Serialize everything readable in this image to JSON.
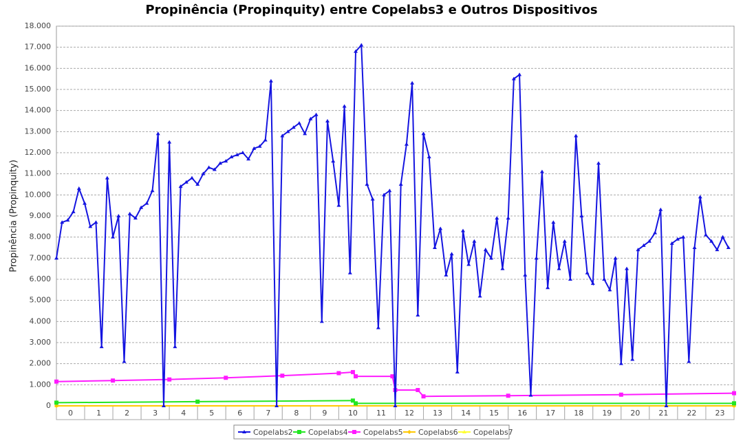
{
  "chart_data": {
    "type": "line",
    "title": "Propinência (Propinquity) entre Copelabs3 e Outros Dispositivos",
    "y_label": "Propinência (Propinquity)",
    "categories": [
      0,
      1,
      2,
      3,
      4,
      5,
      6,
      7,
      8,
      9,
      10,
      11,
      12,
      13,
      14,
      15,
      16,
      17,
      18,
      19,
      20,
      21,
      22,
      23
    ],
    "xlim": [
      0,
      24
    ],
    "ylim": [
      0,
      18000
    ],
    "yticks": [
      {
        "value": 0,
        "label": "0"
      },
      {
        "value": 1000,
        "label": "1.000"
      },
      {
        "value": 2000,
        "label": "2.000"
      },
      {
        "value": 3000,
        "label": "3.000"
      },
      {
        "value": 4000,
        "label": "4.000"
      },
      {
        "value": 5000,
        "label": "5.000"
      },
      {
        "value": 6000,
        "label": "6.000"
      },
      {
        "value": 7000,
        "label": "7.000"
      },
      {
        "value": 8000,
        "label": "8.000"
      },
      {
        "value": 9000,
        "label": "9.000"
      },
      {
        "value": 10000,
        "label": "10.000"
      },
      {
        "value": 11000,
        "label": "11.000"
      },
      {
        "value": 12000,
        "label": "12.000"
      },
      {
        "value": 13000,
        "label": "13.000"
      },
      {
        "value": 14000,
        "label": "14.000"
      },
      {
        "value": 15000,
        "label": "15.000"
      },
      {
        "value": 16000,
        "label": "16.000"
      },
      {
        "value": 17000,
        "label": "17.000"
      },
      {
        "value": 18000,
        "label": "18.000"
      }
    ],
    "grid": true,
    "legend": "bottom",
    "series": [
      {
        "name": "Copelabs2",
        "color": "#1414e0",
        "marker": "triangle",
        "x": [
          0,
          0.2,
          0.4,
          0.6,
          0.8,
          1,
          1.2,
          1.4,
          1.6,
          1.8,
          2,
          2.2,
          2.4,
          2.6,
          2.8,
          3,
          3.2,
          3.4,
          3.6,
          3.8,
          4,
          4.2,
          4.4,
          4.6,
          4.8,
          5,
          5.2,
          5.4,
          5.6,
          5.8,
          6,
          6.2,
          6.4,
          6.6,
          6.8,
          7,
          7.2,
          7.4,
          7.6,
          7.8,
          8,
          8.2,
          8.4,
          8.6,
          8.8,
          9,
          9.2,
          9.4,
          9.6,
          9.8,
          10,
          10.2,
          10.4,
          10.6,
          10.8,
          11,
          11.2,
          11.4,
          11.6,
          11.8,
          12,
          12.2,
          12.4,
          12.6,
          12.8,
          13,
          13.2,
          13.4,
          13.6,
          13.8,
          14,
          14.2,
          14.4,
          14.6,
          14.8,
          15,
          15.2,
          15.4,
          15.6,
          15.8,
          16,
          16.2,
          16.4,
          16.6,
          16.8,
          17,
          17.2,
          17.4,
          17.6,
          17.8,
          18,
          18.2,
          18.4,
          18.6,
          18.8,
          19,
          19.2,
          19.4,
          19.6,
          19.8,
          20,
          20.2,
          20.4,
          20.6,
          20.8,
          21,
          21.2,
          21.4,
          21.6,
          21.8,
          22,
          22.2,
          22.4,
          22.6,
          22.8,
          23,
          23.2,
          23.4,
          23.6,
          23.8
        ],
        "values": [
          7000,
          8700,
          8800,
          9200,
          10300,
          9600,
          8500,
          8700,
          2800,
          10800,
          8000,
          9000,
          2100,
          9100,
          8900,
          9400,
          9600,
          10200,
          12900,
          0,
          12500,
          2800,
          10400,
          10600,
          10800,
          10500,
          11000,
          11300,
          11200,
          11500,
          11600,
          11800,
          11900,
          12000,
          11700,
          12200,
          12300,
          12600,
          15400,
          0,
          12800,
          13000,
          13200,
          13400,
          12900,
          13600,
          13800,
          4000,
          13500,
          11600,
          9500,
          14200,
          6300,
          16800,
          17100,
          10500,
          9800,
          3700,
          10000,
          10200,
          0,
          10500,
          12400,
          15300,
          4300,
          12900,
          11800,
          7500,
          8400,
          6200,
          7200,
          1600,
          8300,
          6700,
          7800,
          5200,
          7400,
          7000,
          8900,
          6500,
          8900,
          15500,
          15700,
          6200,
          500,
          7000,
          11100,
          5600,
          8700,
          6500,
          7800,
          6000,
          12800,
          9000,
          6300,
          5800,
          11500,
          6000,
          5500,
          7000,
          2000,
          6500,
          2200,
          7400,
          7600,
          7800,
          8200,
          9300,
          0,
          7700,
          7900,
          8000,
          2100,
          7500,
          9900,
          8100,
          7800,
          7400,
          8000,
          7500
        ]
      },
      {
        "name": "Copelabs4",
        "color": "#22e622",
        "marker": "square",
        "x": [
          0,
          5,
          10.5,
          10.6,
          24
        ],
        "values": [
          150,
          200,
          250,
          120,
          120
        ]
      },
      {
        "name": "Copelabs5",
        "color": "#ff1aff",
        "marker": "square",
        "x": [
          0,
          2,
          4,
          6,
          8,
          10,
          10.5,
          10.6,
          11.9,
          12,
          12.8,
          13,
          16,
          20,
          24
        ],
        "values": [
          1150,
          1200,
          1250,
          1330,
          1430,
          1550,
          1600,
          1400,
          1400,
          750,
          750,
          450,
          480,
          530,
          600
        ]
      },
      {
        "name": "Copelabs6",
        "color": "#ffc800",
        "marker": "diamond",
        "x": [
          0,
          24
        ],
        "values": [
          0,
          0
        ]
      },
      {
        "name": "Copelabs7",
        "color": "#ffff33",
        "marker": "triangle",
        "x": [
          0,
          24
        ],
        "values": [
          0,
          0
        ]
      }
    ]
  }
}
